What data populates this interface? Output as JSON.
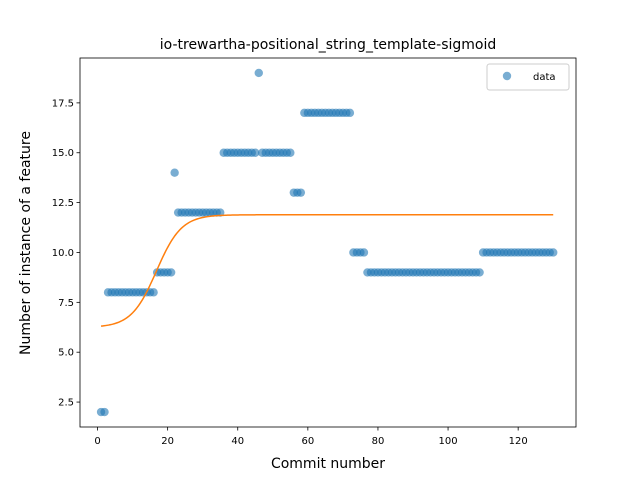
{
  "chart_data": {
    "type": "scatter",
    "title": "io-trewartha-positional_string_template-sigmoid",
    "xlabel": "Commit number",
    "ylabel": "Number of instance of a feature",
    "xlim": [
      -5,
      136.5
    ],
    "ylim": [
      1.25,
      19.75
    ],
    "xticks": [
      0,
      20,
      40,
      60,
      80,
      100,
      120
    ],
    "yticks": [
      2.5,
      5.0,
      7.5,
      10.0,
      12.5,
      15.0,
      17.5
    ],
    "xtick_labels": [
      "0",
      "20",
      "40",
      "60",
      "80",
      "100",
      "120"
    ],
    "ytick_labels": [
      "2.5",
      "5.0",
      "7.5",
      "10.0",
      "12.5",
      "15.0",
      "17.5"
    ],
    "legend": {
      "position": "top-right",
      "entries": [
        "data"
      ]
    },
    "grid": false,
    "series": [
      {
        "name": "data",
        "kind": "scatter",
        "color": "#1f77b4",
        "x": [
          1,
          2,
          3,
          4,
          5,
          6,
          7,
          8,
          9,
          10,
          11,
          12,
          13,
          14,
          15,
          16,
          17,
          18,
          19,
          20,
          21,
          22,
          23,
          24,
          25,
          26,
          27,
          28,
          29,
          30,
          31,
          32,
          33,
          34,
          35,
          36,
          37,
          38,
          39,
          40,
          41,
          42,
          43,
          44,
          45,
          46,
          47,
          48,
          49,
          50,
          51,
          52,
          53,
          54,
          55,
          56,
          57,
          58,
          59,
          60,
          61,
          62,
          63,
          64,
          65,
          66,
          67,
          68,
          69,
          70,
          71,
          72,
          73,
          74,
          75,
          76,
          77,
          78,
          79,
          80,
          81,
          82,
          83,
          84,
          85,
          86,
          87,
          88,
          89,
          90,
          91,
          92,
          93,
          94,
          95,
          96,
          97,
          98,
          99,
          100,
          101,
          102,
          103,
          104,
          105,
          106,
          107,
          108,
          109,
          110,
          111,
          112,
          113,
          114,
          115,
          116,
          117,
          118,
          119,
          120,
          121,
          122,
          123,
          124,
          125,
          126,
          127,
          128,
          129,
          130
        ],
        "y": [
          2,
          2,
          8,
          8,
          8,
          8,
          8,
          8,
          8,
          8,
          8,
          8,
          8,
          8,
          8,
          8,
          9,
          9,
          9,
          9,
          9,
          14,
          12,
          12,
          12,
          12,
          12,
          12,
          12,
          12,
          12,
          12,
          12,
          12,
          12,
          15,
          15,
          15,
          15,
          15,
          15,
          15,
          15,
          15,
          15,
          19,
          15,
          15,
          15,
          15,
          15,
          15,
          15,
          15,
          15,
          13,
          13,
          13,
          17,
          17,
          17,
          17,
          17,
          17,
          17,
          17,
          17,
          17,
          17,
          17,
          17,
          17,
          10,
          10,
          10,
          10,
          9,
          9,
          9,
          9,
          9,
          9,
          9,
          9,
          9,
          9,
          9,
          9,
          9,
          9,
          9,
          9,
          9,
          9,
          9,
          9,
          9,
          9,
          9,
          9,
          9,
          9,
          9,
          9,
          9,
          9,
          9,
          9,
          9,
          10,
          10,
          10,
          10,
          10,
          10,
          10,
          10,
          10,
          10,
          10,
          10,
          10,
          10,
          10,
          10,
          10,
          10,
          10,
          10,
          10
        ]
      },
      {
        "kind": "line",
        "color": "#ff7f0e",
        "model": "sigmoid",
        "params": {
          "L": 5.65,
          "k": 0.28,
          "x0": 16.8,
          "b": 6.24
        }
      }
    ]
  }
}
